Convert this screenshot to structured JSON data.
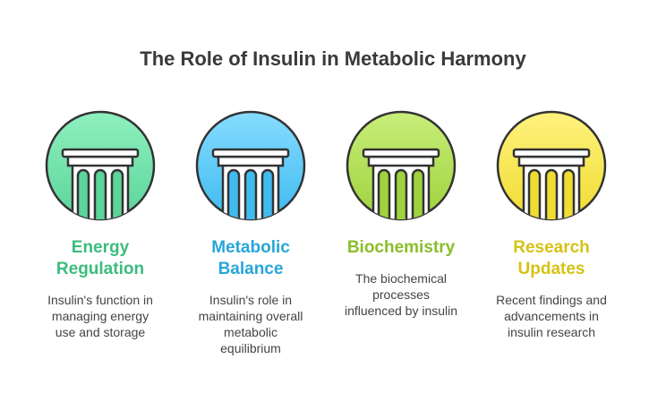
{
  "title": "The Role of Insulin in Metabolic Harmony",
  "items": [
    {
      "title": [
        "Energy",
        "Regulation"
      ],
      "description": [
        "Insulin's function in",
        "managing energy",
        "use and storage"
      ],
      "color": "#5cd49a",
      "light": "#8ef0bf",
      "text_color": "#3cbc7e"
    },
    {
      "title": [
        "Metabolic",
        "Balance"
      ],
      "description": [
        "Insulin's role in",
        "maintaining overall",
        "metabolic",
        "equilibrium"
      ],
      "color": "#3fbbf0",
      "light": "#86dcff",
      "text_color": "#27a6d8"
    },
    {
      "title": [
        "Biochemistry"
      ],
      "description": [
        "The biochemical",
        "processes",
        "influenced by insulin"
      ],
      "color": "#9fd23c",
      "light": "#c8ee7a",
      "text_color": "#8bbd2a"
    },
    {
      "title": [
        "Research",
        "Updates"
      ],
      "description": [
        "Recent findings and",
        "advancements in",
        "insulin research"
      ],
      "color": "#f0dc32",
      "light": "#fff27e",
      "text_color": "#d6c215"
    }
  ]
}
